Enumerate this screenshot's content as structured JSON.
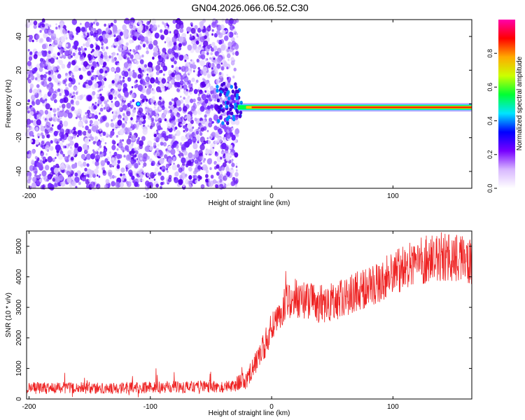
{
  "title": "GN04.2026.066.06.52.C30",
  "chart_data": [
    {
      "type": "heatmap",
      "title": "GN04.2026.066.06.52.C30",
      "xlabel": "Height of straight line (km)",
      "ylabel": "Frequency (Hz)",
      "xlim": [
        -202,
        165
      ],
      "ylim": [
        -50,
        50
      ],
      "x_ticks": [
        "-200",
        "-100",
        "0",
        "100"
      ],
      "y_ticks": [
        "40",
        "20",
        "0",
        "-20",
        "-40"
      ],
      "colorbar": {
        "label": "Normalized spectral amplitude",
        "range": [
          0,
          1
        ],
        "ticks": [
          "0.0",
          "0.2",
          "0.4",
          "0.6",
          "0.8"
        ],
        "colormap": [
          "#ffffff",
          "#d8b8ff",
          "#7700ff",
          "#0000ff",
          "#00e5ff",
          "#00ff33",
          "#ccff00",
          "#ffaa00",
          "#ff0000",
          "#ff00aa"
        ]
      },
      "noise_region": {
        "x_range": [
          -202,
          -28
        ],
        "amplitude": [
          0.05,
          0.2
        ]
      },
      "signal_line": {
        "x_range": [
          -28,
          165
        ],
        "frequency": -2,
        "amplitude": 0.95
      }
    },
    {
      "type": "line",
      "xlabel": "Height of straight line (km)",
      "ylabel": "SNR (10 * v/v)",
      "xlim": [
        -202,
        165
      ],
      "ylim": [
        0,
        5500
      ],
      "x_ticks": [
        "-200",
        "-100",
        "0",
        "100"
      ],
      "y_ticks": [
        "0",
        "1000",
        "2000",
        "3000",
        "4000",
        "5000"
      ],
      "color": "#ee2222",
      "trend": {
        "x": [
          -202,
          -100,
          -30,
          -20,
          -10,
          0,
          10,
          20,
          40,
          60,
          80,
          100,
          120,
          140,
          165
        ],
        "y": [
          350,
          380,
          420,
          700,
          1400,
          2300,
          3100,
          3300,
          3100,
          3300,
          3700,
          4100,
          4500,
          4650,
          4500
        ]
      }
    }
  ]
}
